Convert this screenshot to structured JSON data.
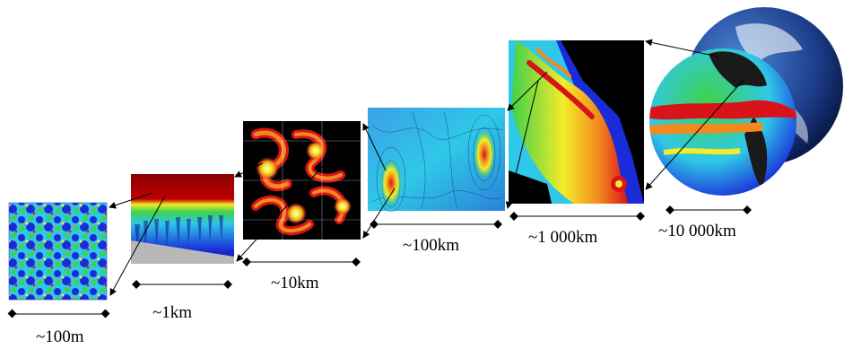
{
  "scales": [
    {
      "id": "100m",
      "label": "~100m"
    },
    {
      "id": "1km",
      "label": "~1km"
    },
    {
      "id": "10km",
      "label": "~10km"
    },
    {
      "id": "100km",
      "label": "~100km"
    },
    {
      "id": "1000km",
      "label": "~1 000km"
    },
    {
      "id": "10000km",
      "label": "~10 000km"
    }
  ],
  "colors": {
    "deep_blue": "#1a2bd8",
    "cyan": "#2fc8e8",
    "green": "#3fd24a",
    "yellow": "#f4ec2a",
    "orange": "#f28a1e",
    "red": "#d8141a",
    "dark_red": "#7a0000",
    "black": "#000000",
    "gray_seafloor": "#b8b8b8"
  }
}
